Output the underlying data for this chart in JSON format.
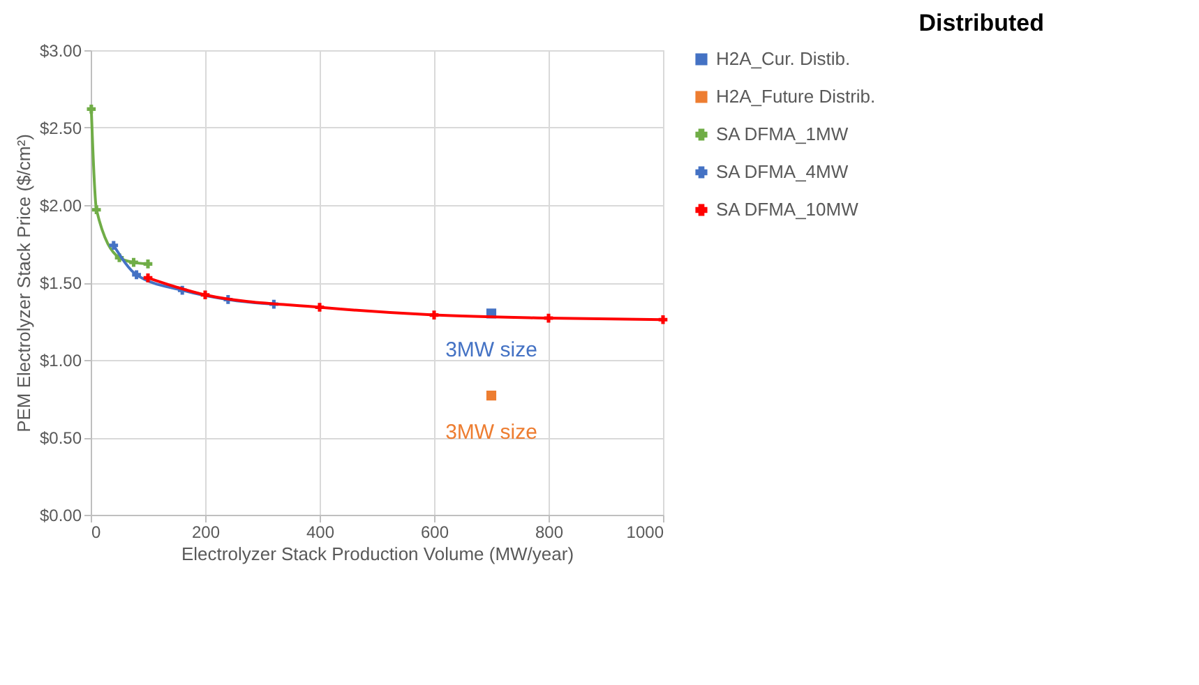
{
  "chart_data": {
    "type": "line",
    "title": "Distributed",
    "xlabel": "Electrolyzer  Stack Production Volume (MW/year)",
    "ylabel": "PEM Electrolyzer Stack Price ($/cm²)",
    "xlim": [
      0,
      1000
    ],
    "xticks": [
      0,
      200,
      400,
      600,
      800,
      1000
    ],
    "ylim": [
      0,
      3
    ],
    "yticks": [
      {
        "value": 0,
        "label": "$0.00"
      },
      {
        "value": 0.5,
        "label": "$0.50"
      },
      {
        "value": 1,
        "label": "$1.00"
      },
      {
        "value": 1.5,
        "label": "$1.50"
      },
      {
        "value": 2,
        "label": "$2.00"
      },
      {
        "value": 2.5,
        "label": "$2.50"
      },
      {
        "value": 3,
        "label": "$3.00"
      }
    ],
    "grid": true,
    "legend": "right",
    "series": [
      {
        "name": "H2A_Cur. Distib.",
        "type": "scatter",
        "marker": "square",
        "color": "#4472c4",
        "x": [
          700
        ],
        "values": [
          1.3
        ]
      },
      {
        "name": "H2A_Future Distrib.",
        "type": "scatter",
        "marker": "square",
        "color": "#ed7d31",
        "x": [
          700
        ],
        "values": [
          0.77
        ]
      },
      {
        "name": "SA DFMA_1MW",
        "marker": "cross",
        "color": "#70ad47",
        "x": [
          1,
          10,
          50,
          75,
          100
        ],
        "values": [
          2.62,
          1.97,
          1.66,
          1.63,
          1.62
        ]
      },
      {
        "name": "SA DFMA_4MW",
        "marker": "cross",
        "color": "#4472c4",
        "x": [
          40,
          80,
          160,
          240,
          320
        ],
        "values": [
          1.74,
          1.55,
          1.45,
          1.39,
          1.36
        ]
      },
      {
        "name": "SA DFMA_10MW",
        "marker": "cross",
        "color": "#ff0000",
        "x": [
          100,
          200,
          400,
          600,
          800,
          1000
        ],
        "values": [
          1.53,
          1.42,
          1.34,
          1.29,
          1.27,
          1.26
        ]
      }
    ],
    "annotations": [
      "3MW size",
      "3MW size"
    ]
  }
}
